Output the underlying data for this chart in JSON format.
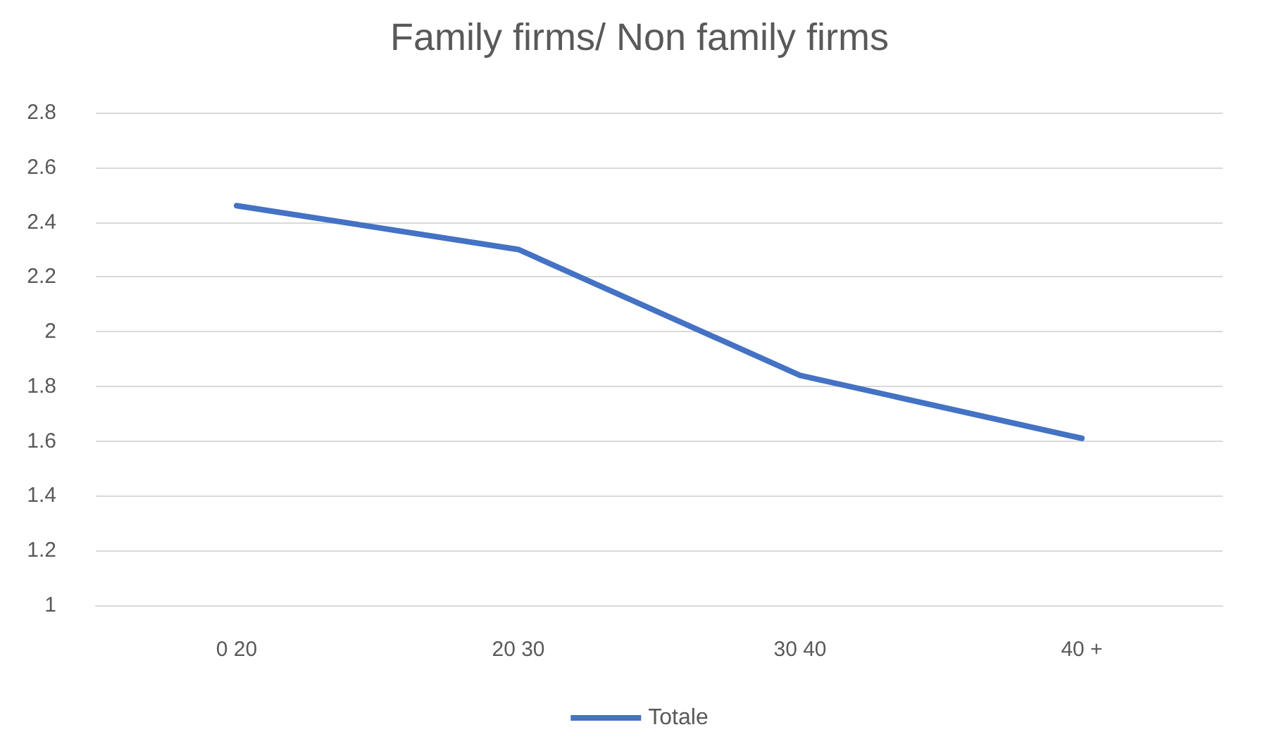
{
  "chart_data": {
    "type": "line",
    "title": "Family firms/ Non family firms",
    "categories": [
      "0 20",
      "20 30",
      "30 40",
      "40 +"
    ],
    "series": [
      {
        "name": "Totale",
        "color": "#4472c4",
        "values": [
          2.46,
          2.3,
          1.84,
          1.61
        ]
      }
    ],
    "ylim": [
      1,
      2.8
    ],
    "yticks": [
      1,
      1.2,
      1.4,
      1.6,
      1.8,
      2,
      2.2,
      2.4,
      2.6,
      2.8
    ],
    "grid": "y",
    "legend": "bottom",
    "marker": "none",
    "line_style": "solid"
  }
}
